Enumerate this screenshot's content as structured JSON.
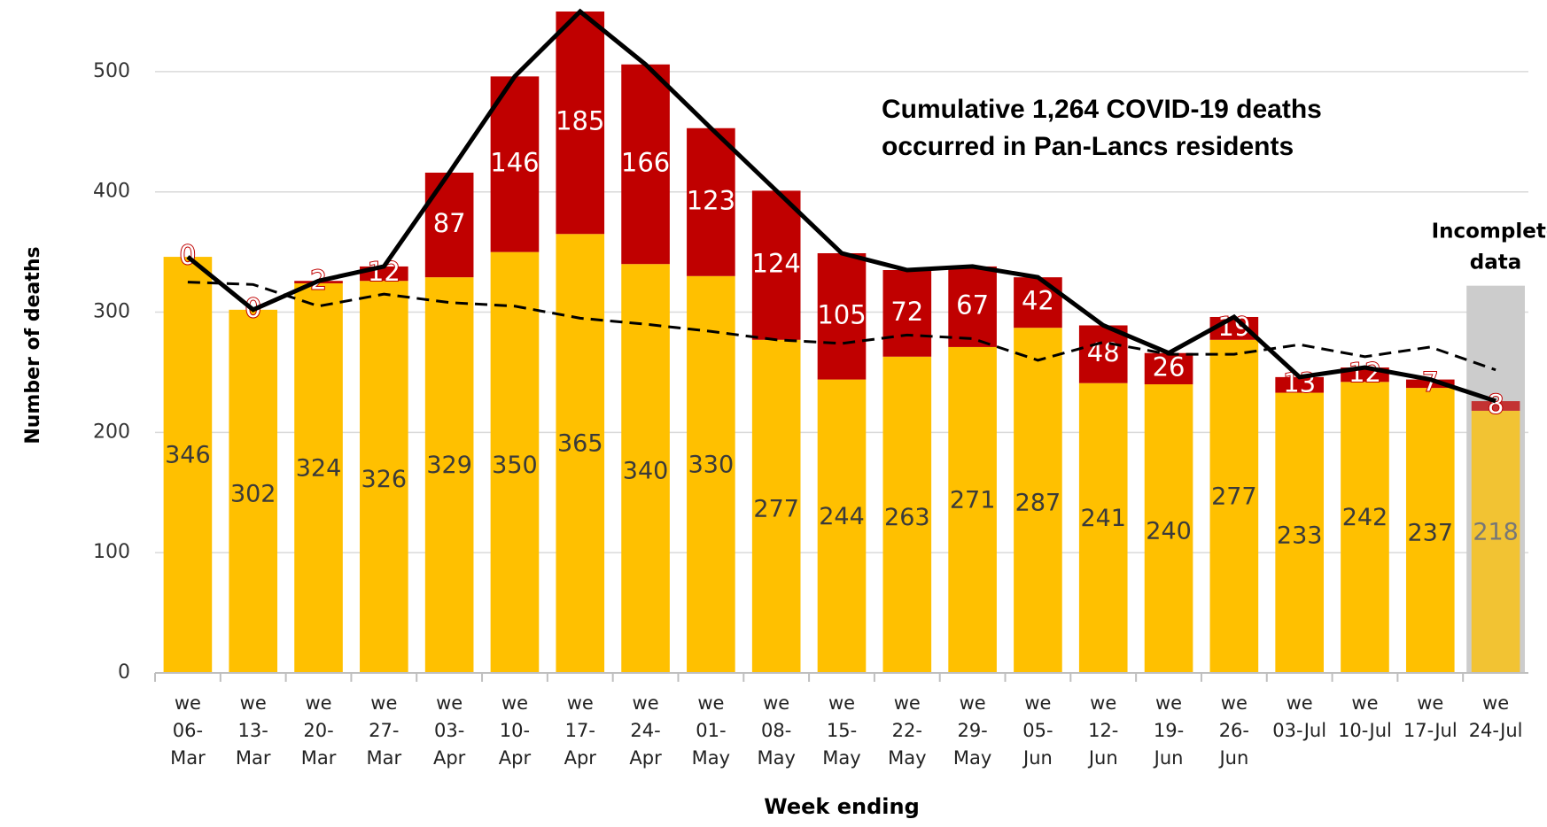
{
  "chart_data": {
    "type": "stacked-bar",
    "y_label": "Number of deaths",
    "x_label": "Week ending",
    "annotation": [
      "Cumulative 1,264 COVID-19 deaths",
      "occurred in Pan-Lancs residents"
    ],
    "incomplete_note": [
      "Incomplete",
      "data"
    ],
    "categories": [
      "we\n06-\nMar",
      "we\n13-\nMar",
      "we\n20-\nMar",
      "we\n27-\nMar",
      "we\n03-\nApr",
      "we\n10-\nApr",
      "we\n17-\nApr",
      "we\n24-\nApr",
      "we\n01-\nMay",
      "we\n08-\nMay",
      "we\n15-\nMay",
      "we\n22-\nMay",
      "we\n29-\nMay",
      "we\n05-\nJun",
      "we\n12-\nJun",
      "we\n19-\nJun",
      "we\n26-\nJun",
      "we\n03-Jul",
      "we\n10-Jul",
      "we\n17-Jul",
      "we\n24-Jul"
    ],
    "series": [
      {
        "color": "#ffc000",
        "label_color": "#3a3a3a",
        "values": [
          346,
          302,
          324,
          326,
          329,
          350,
          365,
          340,
          330,
          277,
          244,
          263,
          271,
          287,
          241,
          240,
          277,
          233,
          242,
          237,
          218
        ]
      },
      {
        "color": "#c00000",
        "label_color": "#ffffff",
        "values": [
          0,
          0,
          2,
          12,
          87,
          146,
          185,
          166,
          123,
          124,
          105,
          72,
          67,
          42,
          48,
          26,
          19,
          13,
          12,
          7,
          8
        ]
      }
    ],
    "lines": [
      {
        "color": "#000000",
        "dashed": false,
        "values": [
          346,
          302,
          326,
          338,
          416,
          496,
          550,
          506,
          453,
          401,
          349,
          335,
          338,
          329,
          289,
          266,
          296,
          246,
          254,
          244,
          226
        ]
      },
      {
        "color": "#000000",
        "dashed": true,
        "values": [
          325,
          323,
          305,
          315,
          308,
          305,
          295,
          290,
          284,
          277,
          274,
          281,
          278,
          260,
          275,
          265,
          265,
          273,
          263,
          271,
          252
        ]
      }
    ],
    "ylim": [
      0,
      550
    ],
    "yticks": [
      0,
      100,
      200,
      300,
      400,
      500
    ],
    "grid": true
  }
}
